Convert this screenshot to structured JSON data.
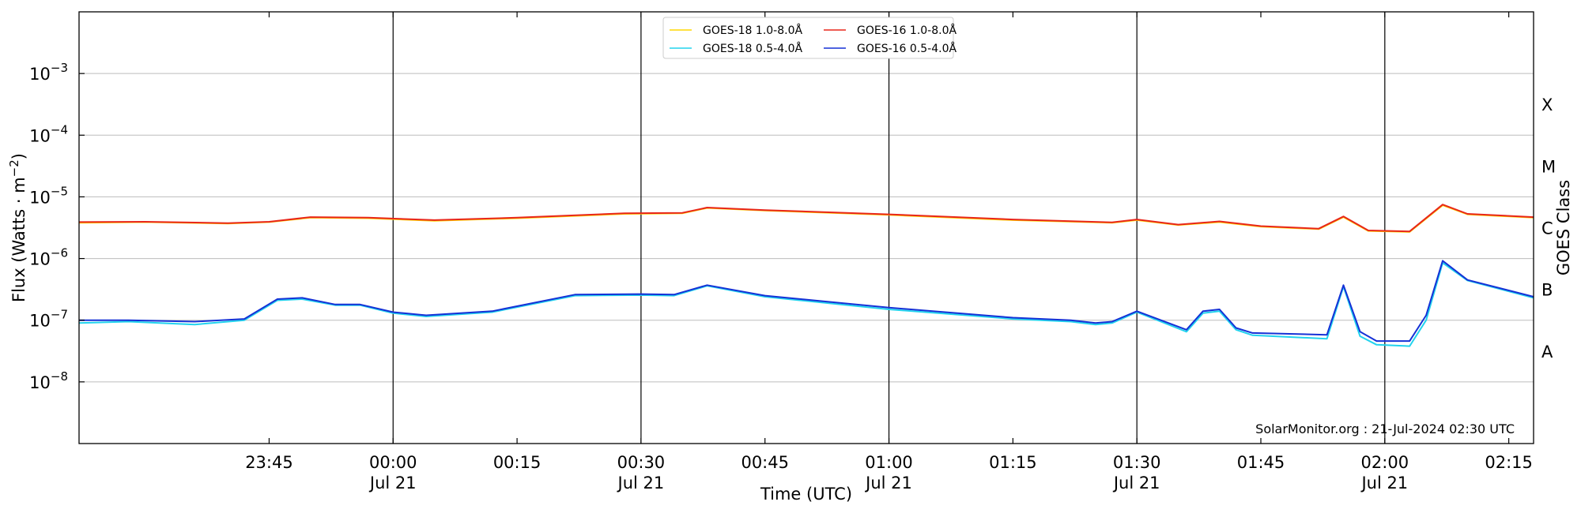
{
  "chart_data": {
    "type": "line",
    "xlabel": "Time (UTC)",
    "ylabel": "Flux (Watts · m",
    "ylabel_sup": "−2",
    "ylabel_end": ")",
    "y2label": "GOES Class",
    "yscale": "log",
    "ylim": [
      1e-09,
      0.01
    ],
    "xlim": [
      "2024-07-20 23:22",
      "2024-07-21 02:18"
    ],
    "y_ticks": [
      {
        "exp": -8,
        "base": "10",
        "sup": "−8"
      },
      {
        "exp": -7,
        "base": "10",
        "sup": "−7"
      },
      {
        "exp": -6,
        "base": "10",
        "sup": "−6"
      },
      {
        "exp": -5,
        "base": "10",
        "sup": "−5"
      },
      {
        "exp": -4,
        "base": "10",
        "sup": "−4"
      },
      {
        "exp": -3,
        "base": "10",
        "sup": "−3"
      }
    ],
    "x_ticks": [
      {
        "t": "2024-07-20 23:45",
        "label": "23:45",
        "sub": ""
      },
      {
        "t": "2024-07-21 00:00",
        "label": "00:00",
        "sub": "Jul 21"
      },
      {
        "t": "2024-07-21 00:15",
        "label": "00:15",
        "sub": ""
      },
      {
        "t": "2024-07-21 00:30",
        "label": "00:30",
        "sub": "Jul 21"
      },
      {
        "t": "2024-07-21 00:45",
        "label": "00:45",
        "sub": ""
      },
      {
        "t": "2024-07-21 01:00",
        "label": "01:00",
        "sub": "Jul 21"
      },
      {
        "t": "2024-07-21 01:15",
        "label": "01:15",
        "sub": ""
      },
      {
        "t": "2024-07-21 01:30",
        "label": "01:30",
        "sub": "Jul 21"
      },
      {
        "t": "2024-07-21 01:45",
        "label": "01:45",
        "sub": ""
      },
      {
        "t": "2024-07-21 02:00",
        "label": "02:00",
        "sub": "Jul 21"
      },
      {
        "t": "2024-07-21 02:15",
        "label": "02:15",
        "sub": ""
      }
    ],
    "vlines": [
      "2024-07-21 00:00",
      "2024-07-21 00:30",
      "2024-07-21 01:00",
      "2024-07-21 01:30",
      "2024-07-21 02:00"
    ],
    "goes_classes": [
      {
        "label": "A",
        "exp": -7.5
      },
      {
        "label": "B",
        "exp": -6.5
      },
      {
        "label": "C",
        "exp": -5.5
      },
      {
        "label": "M",
        "exp": -4.5
      },
      {
        "label": "X",
        "exp": -3.5
      }
    ],
    "legend_position": "top-center",
    "legend_order": [
      0,
      2,
      1,
      3
    ],
    "grid": "horizontal",
    "annotation": "SolarMonitor.org : 21-Jul-2024 02:30 UTC",
    "series": [
      {
        "name": "GOES-18 1.0-8.0Å",
        "color": "#ffd700",
        "x": [
          "2024-07-20 23:22",
          "2024-07-20 23:30",
          "2024-07-20 23:40",
          "2024-07-20 23:45",
          "2024-07-20 23:50",
          "2024-07-20 23:57",
          "2024-07-21 00:05",
          "2024-07-21 00:15",
          "2024-07-21 00:28",
          "2024-07-21 00:35",
          "2024-07-21 00:38",
          "2024-07-21 00:45",
          "2024-07-21 01:00",
          "2024-07-21 01:15",
          "2024-07-21 01:27",
          "2024-07-21 01:30",
          "2024-07-21 01:35",
          "2024-07-21 01:40",
          "2024-07-21 01:45",
          "2024-07-21 01:52",
          "2024-07-21 01:55",
          "2024-07-21 01:58",
          "2024-07-21 02:03",
          "2024-07-21 02:07",
          "2024-07-21 02:10",
          "2024-07-21 02:18"
        ],
        "y": [
          3.8e-06,
          3.9e-06,
          3.7e-06,
          3.9e-06,
          4.6e-06,
          4.5e-06,
          4.1e-06,
          4.5e-06,
          5.3e-06,
          5.4e-06,
          6.6e-06,
          6e-06,
          5.1e-06,
          4.2e-06,
          3.8e-06,
          4.2e-06,
          3.5e-06,
          3.9e-06,
          3.3e-06,
          3e-06,
          4.7e-06,
          2.8e-06,
          2.7e-06,
          7.3e-06,
          5.2e-06,
          4.6e-06
        ]
      },
      {
        "name": "GOES-16 1.0-8.0Å",
        "color": "#e8261a",
        "x": [
          "2024-07-20 23:22",
          "2024-07-20 23:30",
          "2024-07-20 23:40",
          "2024-07-20 23:45",
          "2024-07-20 23:50",
          "2024-07-20 23:57",
          "2024-07-21 00:05",
          "2024-07-21 00:15",
          "2024-07-21 00:28",
          "2024-07-21 00:35",
          "2024-07-21 00:38",
          "2024-07-21 00:45",
          "2024-07-21 01:00",
          "2024-07-21 01:15",
          "2024-07-21 01:27",
          "2024-07-21 01:30",
          "2024-07-21 01:35",
          "2024-07-21 01:40",
          "2024-07-21 01:45",
          "2024-07-21 01:52",
          "2024-07-21 01:55",
          "2024-07-21 01:58",
          "2024-07-21 02:03",
          "2024-07-21 02:07",
          "2024-07-21 02:10",
          "2024-07-21 02:18"
        ],
        "y": [
          3.9e-06,
          3.95e-06,
          3.75e-06,
          3.95e-06,
          4.7e-06,
          4.6e-06,
          4.2e-06,
          4.6e-06,
          5.4e-06,
          5.5e-06,
          6.7e-06,
          6.1e-06,
          5.2e-06,
          4.3e-06,
          3.85e-06,
          4.3e-06,
          3.55e-06,
          4e-06,
          3.35e-06,
          3.05e-06,
          4.8e-06,
          2.85e-06,
          2.75e-06,
          7.5e-06,
          5.3e-06,
          4.7e-06
        ]
      },
      {
        "name": "GOES-18 0.5-4.0Å",
        "color": "#22d3ee",
        "x": [
          "2024-07-20 23:22",
          "2024-07-20 23:28",
          "2024-07-20 23:36",
          "2024-07-20 23:42",
          "2024-07-20 23:46",
          "2024-07-20 23:49",
          "2024-07-20 23:53",
          "2024-07-20 23:56",
          "2024-07-21 00:00",
          "2024-07-21 00:04",
          "2024-07-21 00:12",
          "2024-07-21 00:22",
          "2024-07-21 00:30",
          "2024-07-21 00:34",
          "2024-07-21 00:38",
          "2024-07-21 00:45",
          "2024-07-21 01:00",
          "2024-07-21 01:15",
          "2024-07-21 01:22",
          "2024-07-21 01:25",
          "2024-07-21 01:27",
          "2024-07-21 01:30",
          "2024-07-21 01:36",
          "2024-07-21 01:38",
          "2024-07-21 01:40",
          "2024-07-21 01:42",
          "2024-07-21 01:44",
          "2024-07-21 01:53",
          "2024-07-21 01:55",
          "2024-07-21 01:57",
          "2024-07-21 01:59",
          "2024-07-21 02:03",
          "2024-07-21 02:05",
          "2024-07-21 02:07",
          "2024-07-21 02:10",
          "2024-07-21 02:18"
        ],
        "y": [
          9e-08,
          9.5e-08,
          8.5e-08,
          1e-07,
          2.1e-07,
          2.2e-07,
          1.75e-07,
          1.75e-07,
          1.3e-07,
          1.15e-07,
          1.35e-07,
          2.5e-07,
          2.55e-07,
          2.5e-07,
          3.6e-07,
          2.4e-07,
          1.5e-07,
          1.05e-07,
          9.5e-08,
          8.5e-08,
          9e-08,
          1.35e-07,
          6.5e-08,
          1.3e-07,
          1.4e-07,
          7e-08,
          5.7e-08,
          5e-08,
          3.5e-07,
          5.5e-08,
          4e-08,
          3.8e-08,
          1e-07,
          8.5e-07,
          4.4e-07,
          2.3e-07
        ]
      },
      {
        "name": "GOES-16 0.5-4.0Å",
        "color": "#1531d6",
        "x": [
          "2024-07-20 23:22",
          "2024-07-20 23:28",
          "2024-07-20 23:36",
          "2024-07-20 23:42",
          "2024-07-20 23:46",
          "2024-07-20 23:49",
          "2024-07-20 23:53",
          "2024-07-20 23:56",
          "2024-07-21 00:00",
          "2024-07-21 00:04",
          "2024-07-21 00:12",
          "2024-07-21 00:22",
          "2024-07-21 00:30",
          "2024-07-21 00:34",
          "2024-07-21 00:38",
          "2024-07-21 00:45",
          "2024-07-21 01:00",
          "2024-07-21 01:15",
          "2024-07-21 01:22",
          "2024-07-21 01:25",
          "2024-07-21 01:27",
          "2024-07-21 01:30",
          "2024-07-21 01:36",
          "2024-07-21 01:38",
          "2024-07-21 01:40",
          "2024-07-21 01:42",
          "2024-07-21 01:44",
          "2024-07-21 01:53",
          "2024-07-21 01:55",
          "2024-07-21 01:57",
          "2024-07-21 01:59",
          "2024-07-21 02:03",
          "2024-07-21 02:05",
          "2024-07-21 02:07",
          "2024-07-21 02:10",
          "2024-07-21 02:18"
        ],
        "y": [
          1e-07,
          1e-07,
          9.5e-08,
          1.05e-07,
          2.2e-07,
          2.3e-07,
          1.8e-07,
          1.8e-07,
          1.35e-07,
          1.2e-07,
          1.4e-07,
          2.6e-07,
          2.65e-07,
          2.6e-07,
          3.7e-07,
          2.5e-07,
          1.6e-07,
          1.1e-07,
          1e-07,
          9e-08,
          9.5e-08,
          1.4e-07,
          7e-08,
          1.4e-07,
          1.5e-07,
          7.5e-08,
          6.2e-08,
          5.8e-08,
          3.7e-07,
          6.5e-08,
          4.6e-08,
          4.6e-08,
          1.2e-07,
          9.2e-07,
          4.5e-07,
          2.4e-07
        ]
      }
    ]
  }
}
